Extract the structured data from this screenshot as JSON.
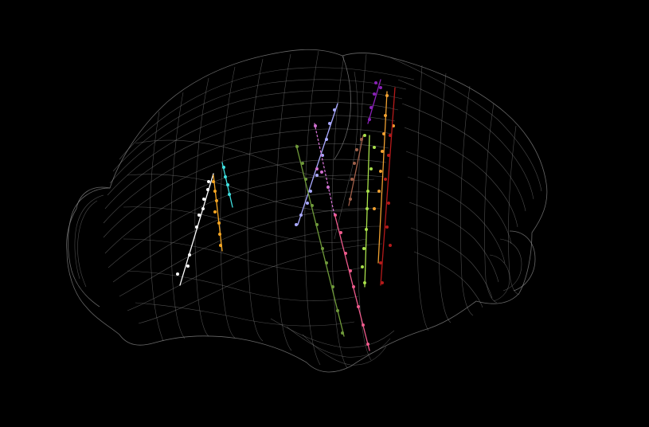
{
  "scene": {
    "background_color": "#000000",
    "mesh_color": "#8a8a8a"
  },
  "probes": [
    {
      "id": "white",
      "color": "#ffffff"
    },
    {
      "id": "orange-left",
      "color": "#f5a623"
    },
    {
      "id": "cyan",
      "color": "#3fe0e0"
    },
    {
      "id": "lavender",
      "color": "#a9a9ff"
    },
    {
      "id": "olive-green",
      "color": "#6f9a3a"
    },
    {
      "id": "pink",
      "color": "#ee5a8c"
    },
    {
      "id": "magenta-light",
      "color": "#d070d0"
    },
    {
      "id": "brown",
      "color": "#a0604a"
    },
    {
      "id": "lime",
      "color": "#a8e04a"
    },
    {
      "id": "purple",
      "color": "#8a22b8"
    },
    {
      "id": "orange-right",
      "color": "#f0a030"
    },
    {
      "id": "dark-red",
      "color": "#b51a1a"
    }
  ]
}
